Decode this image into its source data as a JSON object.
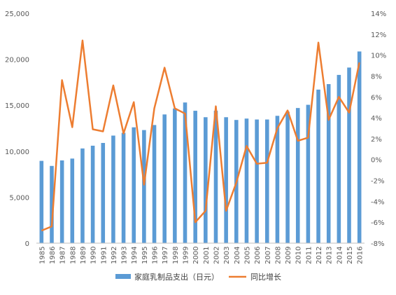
{
  "chart_data": {
    "type": "bar",
    "categories": [
      "1985",
      "1986",
      "1987",
      "1988",
      "1989",
      "1990",
      "1991",
      "1992",
      "1993",
      "1994",
      "1995",
      "1996",
      "1997",
      "1998",
      "1999",
      "2000",
      "2001",
      "2002",
      "2003",
      "2004",
      "2005",
      "2006",
      "2007",
      "2008",
      "2009",
      "2010",
      "2011",
      "2012",
      "2013",
      "2014",
      "2015",
      "2016"
    ],
    "series": [
      {
        "name": "家庭乳制品支出（日元）",
        "type": "bar",
        "axis": "left",
        "color": "#5B9BD5",
        "values": [
          8950,
          8400,
          9000,
          9200,
          10300,
          10600,
          10900,
          11700,
          12000,
          12600,
          12300,
          12850,
          14000,
          14650,
          15300,
          14400,
          13700,
          14400,
          13700,
          13400,
          13550,
          13450,
          13450,
          13850,
          14300,
          14700,
          15050,
          16700,
          17300,
          18300,
          19100,
          20850
        ]
      },
      {
        "name": "同比增长",
        "type": "line",
        "axis": "right",
        "color": "#ED7D31",
        "values": [
          -6.8,
          -6.4,
          7.6,
          3.1,
          11.4,
          2.9,
          2.7,
          7.1,
          2.5,
          5.5,
          -2.4,
          4.9,
          8.8,
          4.9,
          4.4,
          -6.0,
          -4.9,
          5.1,
          -4.9,
          -2.2,
          1.3,
          -0.4,
          -0.3,
          3.0,
          4.7,
          1.8,
          2.1,
          11.2,
          3.8,
          6.0,
          4.5,
          9.3
        ]
      }
    ],
    "y_left": {
      "ylim": [
        0,
        25000
      ],
      "ticks": [
        "0",
        "5,000",
        "10,000",
        "15,000",
        "20,000",
        "25,000"
      ]
    },
    "y_right": {
      "ylim": [
        -8,
        14
      ],
      "ticks": [
        "-8%",
        "-6%",
        "-4%",
        "-2%",
        "0%",
        "2%",
        "4%",
        "6%",
        "8%",
        "10%",
        "12%",
        "14%"
      ]
    },
    "legend": {
      "position": "bottom"
    },
    "grid": false
  }
}
